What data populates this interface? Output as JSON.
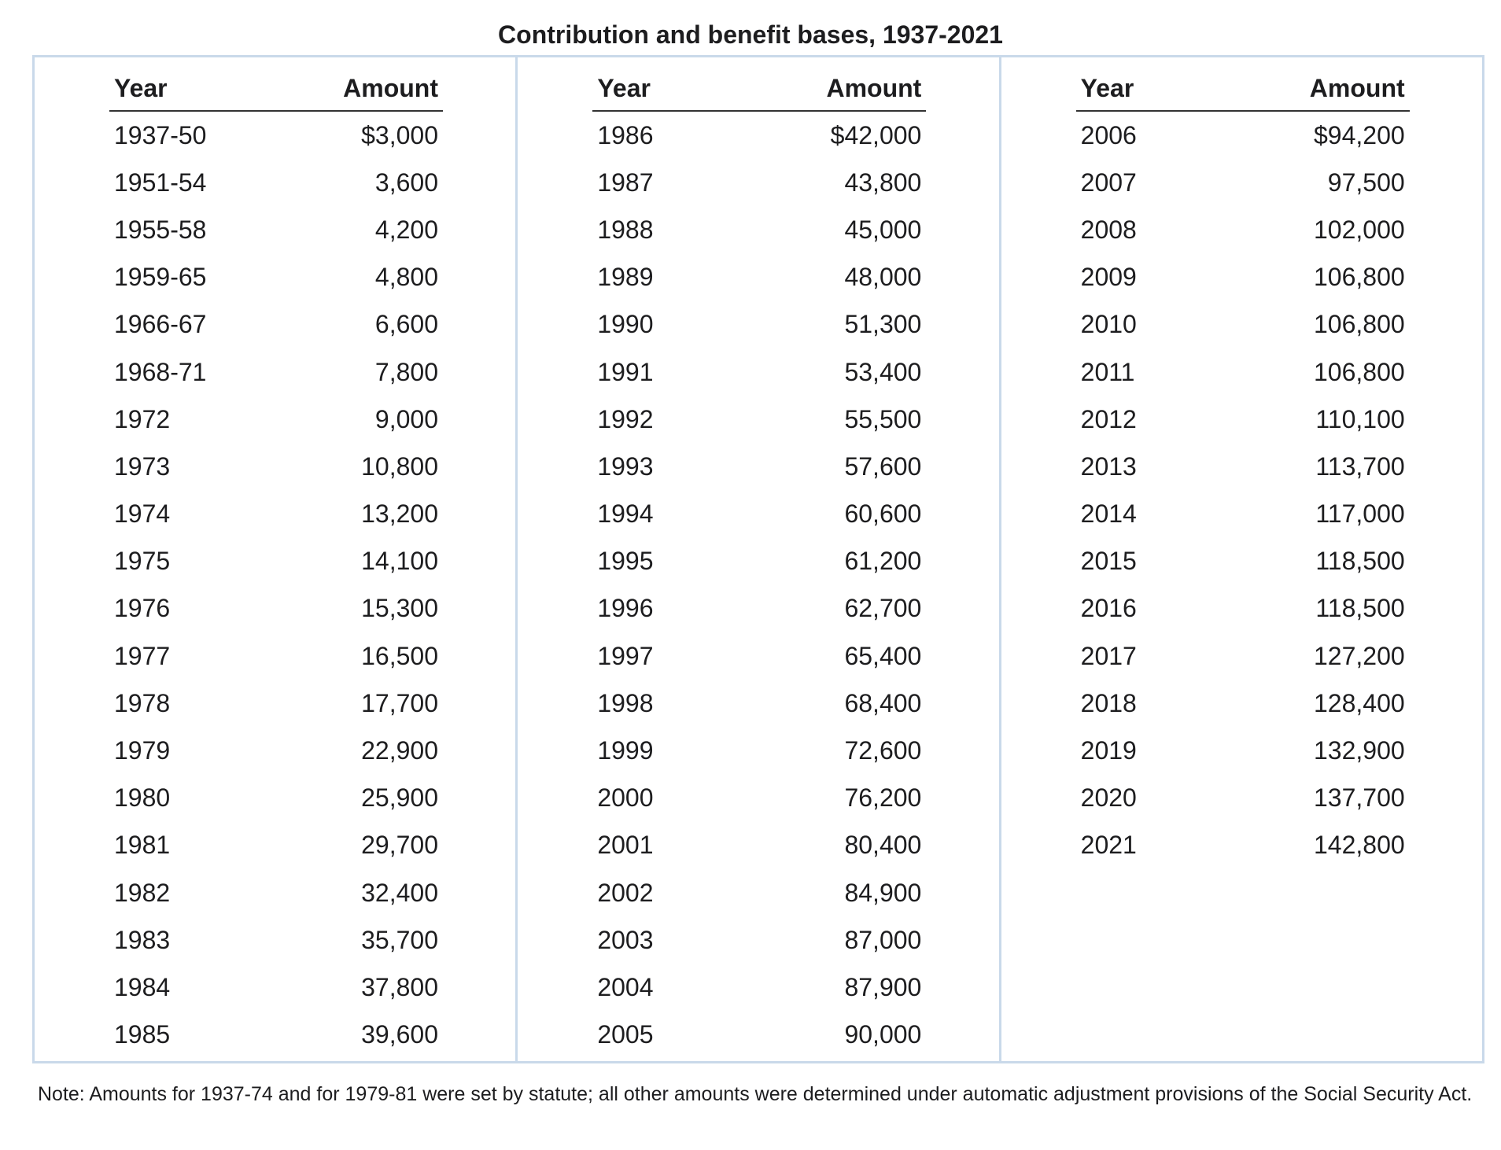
{
  "title": "Contribution and benefit bases, 1937-2021",
  "headers": {
    "year": "Year",
    "amount": "Amount"
  },
  "panels": [
    {
      "rows": [
        {
          "year": "1937-50",
          "amount": "$3,000"
        },
        {
          "year": "1951-54",
          "amount": "3,600"
        },
        {
          "year": "1955-58",
          "amount": "4,200"
        },
        {
          "year": "1959-65",
          "amount": "4,800"
        },
        {
          "year": "1966-67",
          "amount": "6,600"
        },
        {
          "year": "1968-71",
          "amount": "7,800"
        },
        {
          "year": "1972",
          "amount": "9,000"
        },
        {
          "year": "1973",
          "amount": "10,800"
        },
        {
          "year": "1974",
          "amount": "13,200"
        },
        {
          "year": "1975",
          "amount": "14,100"
        },
        {
          "year": "1976",
          "amount": "15,300"
        },
        {
          "year": "1977",
          "amount": "16,500"
        },
        {
          "year": "1978",
          "amount": "17,700"
        },
        {
          "year": "1979",
          "amount": "22,900"
        },
        {
          "year": "1980",
          "amount": "25,900"
        },
        {
          "year": "1981",
          "amount": "29,700"
        },
        {
          "year": "1982",
          "amount": "32,400"
        },
        {
          "year": "1983",
          "amount": "35,700"
        },
        {
          "year": "1984",
          "amount": "37,800"
        },
        {
          "year": "1985",
          "amount": "39,600"
        }
      ]
    },
    {
      "rows": [
        {
          "year": "1986",
          "amount": "$42,000"
        },
        {
          "year": "1987",
          "amount": "43,800"
        },
        {
          "year": "1988",
          "amount": "45,000"
        },
        {
          "year": "1989",
          "amount": "48,000"
        },
        {
          "year": "1990",
          "amount": "51,300"
        },
        {
          "year": "1991",
          "amount": "53,400"
        },
        {
          "year": "1992",
          "amount": "55,500"
        },
        {
          "year": "1993",
          "amount": "57,600"
        },
        {
          "year": "1994",
          "amount": "60,600"
        },
        {
          "year": "1995",
          "amount": "61,200"
        },
        {
          "year": "1996",
          "amount": "62,700"
        },
        {
          "year": "1997",
          "amount": "65,400"
        },
        {
          "year": "1998",
          "amount": "68,400"
        },
        {
          "year": "1999",
          "amount": "72,600"
        },
        {
          "year": "2000",
          "amount": "76,200"
        },
        {
          "year": "2001",
          "amount": "80,400"
        },
        {
          "year": "2002",
          "amount": "84,900"
        },
        {
          "year": "2003",
          "amount": "87,000"
        },
        {
          "year": "2004",
          "amount": "87,900"
        },
        {
          "year": "2005",
          "amount": "90,000"
        }
      ]
    },
    {
      "rows": [
        {
          "year": "2006",
          "amount": "$94,200"
        },
        {
          "year": "2007",
          "amount": "97,500"
        },
        {
          "year": "2008",
          "amount": "102,000"
        },
        {
          "year": "2009",
          "amount": "106,800"
        },
        {
          "year": "2010",
          "amount": "106,800"
        },
        {
          "year": "2011",
          "amount": "106,800"
        },
        {
          "year": "2012",
          "amount": "110,100"
        },
        {
          "year": "2013",
          "amount": "113,700"
        },
        {
          "year": "2014",
          "amount": "117,000"
        },
        {
          "year": "2015",
          "amount": "118,500"
        },
        {
          "year": "2016",
          "amount": "118,500"
        },
        {
          "year": "2017",
          "amount": "127,200"
        },
        {
          "year": "2018",
          "amount": "128,400"
        },
        {
          "year": "2019",
          "amount": "132,900"
        },
        {
          "year": "2020",
          "amount": "137,700"
        },
        {
          "year": "2021",
          "amount": "142,800"
        }
      ]
    }
  ],
  "note": "Note: Amounts for 1937-74 and for 1979-81 were set by statute; all other amounts were determined under automatic adjustment provisions of the Social Security Act."
}
